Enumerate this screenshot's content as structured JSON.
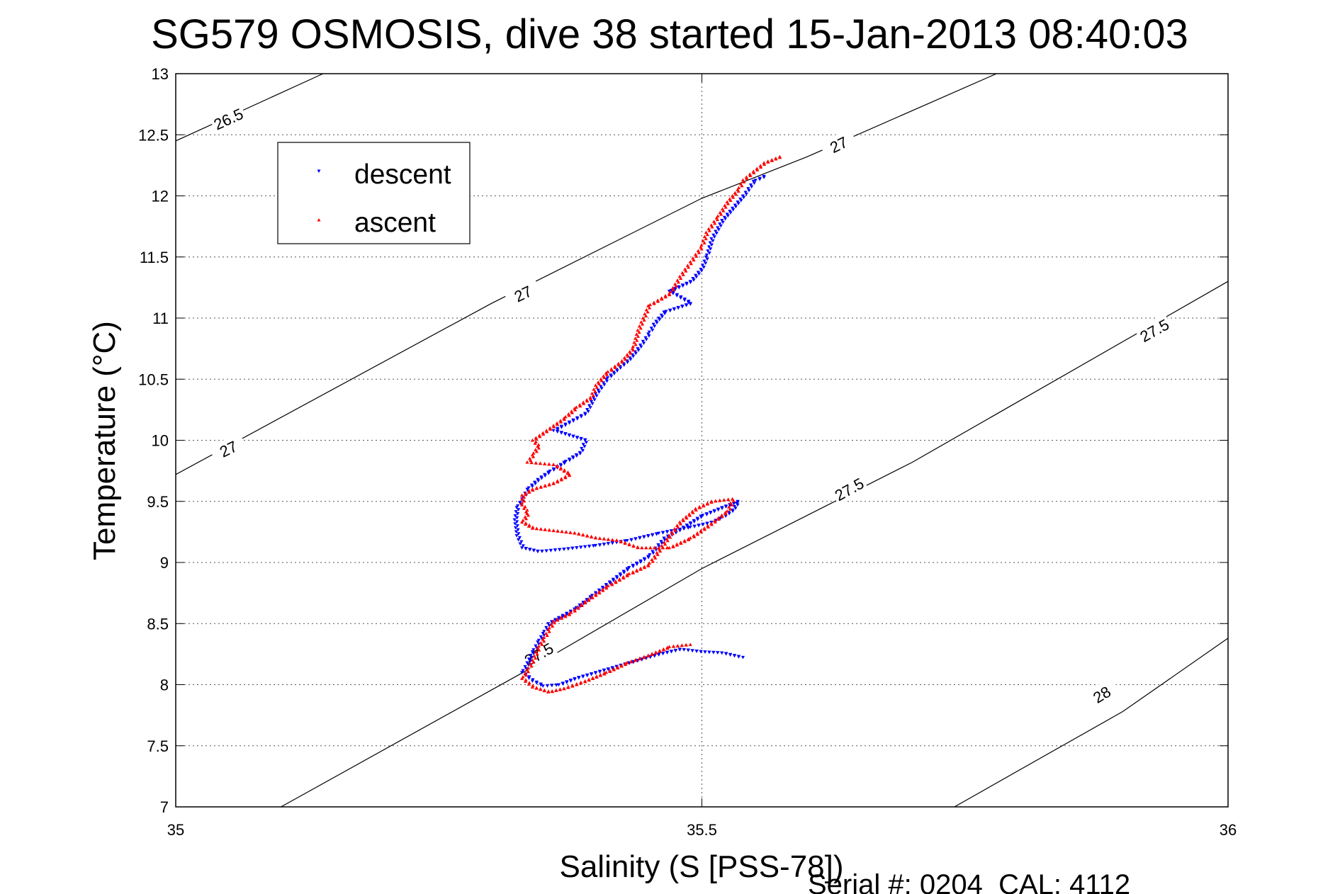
{
  "chart_data": {
    "type": "scatter",
    "title": "SG579 OSMOSIS, dive 38 started 15-Jan-2013 08:40:03",
    "xlabel": "Salinity (S [PSS-78])",
    "ylabel": "Temperature (°C)",
    "xlim": [
      35,
      36
    ],
    "ylim": [
      7,
      13
    ],
    "x_ticks": [
      "35",
      "35.5",
      "36"
    ],
    "y_ticks": [
      "7",
      "7.5",
      "8",
      "8.5",
      "9",
      "9.5",
      "10",
      "10.5",
      "11",
      "11.5",
      "12",
      "12.5",
      "13"
    ],
    "grid": true,
    "legend_position": "top-left",
    "footer": "Serial #: 0204  CAL: 4112",
    "colors": {
      "descent": "#0000ff",
      "ascent": "#ff0000",
      "contour": "#000000"
    },
    "series": [
      {
        "name": "descent",
        "marker": "triangle-down",
        "color": "#0000ff",
        "points": [
          [
            35.56,
            12.16
          ],
          [
            35.55,
            12.12
          ],
          [
            35.54,
            12.0
          ],
          [
            35.53,
            11.9
          ],
          [
            35.52,
            11.8
          ],
          [
            35.51,
            11.65
          ],
          [
            35.505,
            11.5
          ],
          [
            35.5,
            11.4
          ],
          [
            35.49,
            11.3
          ],
          [
            35.47,
            11.22
          ],
          [
            35.49,
            11.12
          ],
          [
            35.465,
            11.05
          ],
          [
            35.455,
            10.95
          ],
          [
            35.45,
            10.87
          ],
          [
            35.44,
            10.75
          ],
          [
            35.43,
            10.65
          ],
          [
            35.42,
            10.58
          ],
          [
            35.41,
            10.5
          ],
          [
            35.4,
            10.38
          ],
          [
            35.39,
            10.22
          ],
          [
            35.375,
            10.15
          ],
          [
            35.36,
            10.08
          ],
          [
            35.39,
            10.0
          ],
          [
            35.385,
            9.9
          ],
          [
            35.37,
            9.82
          ],
          [
            35.355,
            9.74
          ],
          [
            35.345,
            9.68
          ],
          [
            35.335,
            9.6
          ],
          [
            35.33,
            9.52
          ],
          [
            35.325,
            9.45
          ],
          [
            35.323,
            9.35
          ],
          [
            35.325,
            9.22
          ],
          [
            35.33,
            9.12
          ],
          [
            35.345,
            9.09
          ],
          [
            35.37,
            9.11
          ],
          [
            35.4,
            9.14
          ],
          [
            35.43,
            9.18
          ],
          [
            35.46,
            9.24
          ],
          [
            35.49,
            9.29
          ],
          [
            35.51,
            9.33
          ],
          [
            35.52,
            9.37
          ],
          [
            35.53,
            9.43
          ],
          [
            35.535,
            9.5
          ],
          [
            35.52,
            9.45
          ],
          [
            35.5,
            9.38
          ],
          [
            35.48,
            9.27
          ],
          [
            35.465,
            9.2
          ],
          [
            35.45,
            9.05
          ],
          [
            35.43,
            8.95
          ],
          [
            35.41,
            8.82
          ],
          [
            35.395,
            8.72
          ],
          [
            35.38,
            8.62
          ],
          [
            35.365,
            8.55
          ],
          [
            35.355,
            8.5
          ],
          [
            35.35,
            8.42
          ],
          [
            35.345,
            8.35
          ],
          [
            35.34,
            8.27
          ],
          [
            35.335,
            8.18
          ],
          [
            35.33,
            8.1
          ],
          [
            35.34,
            8.03
          ],
          [
            35.35,
            7.99
          ],
          [
            35.365,
            8.0
          ],
          [
            35.38,
            8.05
          ],
          [
            35.4,
            8.1
          ],
          [
            35.42,
            8.15
          ],
          [
            35.44,
            8.2
          ],
          [
            35.46,
            8.25
          ],
          [
            35.48,
            8.29
          ],
          [
            35.5,
            8.27
          ],
          [
            35.52,
            8.26
          ],
          [
            35.54,
            8.22
          ]
        ]
      },
      {
        "name": "ascent",
        "marker": "triangle-up",
        "color": "#ff0000",
        "points": [
          [
            35.575,
            12.32
          ],
          [
            35.56,
            12.27
          ],
          [
            35.55,
            12.2
          ],
          [
            35.54,
            12.13
          ],
          [
            35.535,
            12.05
          ],
          [
            35.525,
            11.95
          ],
          [
            35.515,
            11.82
          ],
          [
            35.505,
            11.7
          ],
          [
            35.5,
            11.58
          ],
          [
            35.49,
            11.46
          ],
          [
            35.48,
            11.34
          ],
          [
            35.47,
            11.2
          ],
          [
            35.45,
            11.1
          ],
          [
            35.445,
            11.0
          ],
          [
            35.44,
            10.9
          ],
          [
            35.435,
            10.75
          ],
          [
            35.425,
            10.65
          ],
          [
            35.41,
            10.55
          ],
          [
            35.4,
            10.45
          ],
          [
            35.395,
            10.35
          ],
          [
            35.38,
            10.26
          ],
          [
            35.37,
            10.18
          ],
          [
            35.36,
            10.12
          ],
          [
            35.35,
            10.06
          ],
          [
            35.34,
            10.0
          ],
          [
            35.345,
            9.95
          ],
          [
            35.34,
            9.88
          ],
          [
            35.335,
            9.82
          ],
          [
            35.36,
            9.8
          ],
          [
            35.375,
            9.72
          ],
          [
            35.36,
            9.65
          ],
          [
            35.34,
            9.6
          ],
          [
            35.33,
            9.55
          ],
          [
            35.33,
            9.47
          ],
          [
            35.335,
            9.4
          ],
          [
            35.33,
            9.33
          ],
          [
            35.34,
            9.28
          ],
          [
            35.36,
            9.26
          ],
          [
            35.38,
            9.24
          ],
          [
            35.4,
            9.2
          ],
          [
            35.42,
            9.18
          ],
          [
            35.44,
            9.12
          ],
          [
            35.47,
            9.12
          ],
          [
            35.49,
            9.2
          ],
          [
            35.51,
            9.32
          ],
          [
            35.525,
            9.42
          ],
          [
            35.53,
            9.52
          ],
          [
            35.51,
            9.5
          ],
          [
            35.495,
            9.44
          ],
          [
            35.48,
            9.33
          ],
          [
            35.47,
            9.22
          ],
          [
            35.45,
            8.98
          ],
          [
            35.43,
            8.9
          ],
          [
            35.41,
            8.8
          ],
          [
            35.39,
            8.68
          ],
          [
            35.375,
            8.58
          ],
          [
            35.36,
            8.52
          ],
          [
            35.355,
            8.45
          ],
          [
            35.35,
            8.37
          ],
          [
            35.345,
            8.3
          ],
          [
            35.34,
            8.2
          ],
          [
            35.335,
            8.12
          ],
          [
            35.33,
            8.05
          ],
          [
            35.34,
            7.98
          ],
          [
            35.355,
            7.94
          ],
          [
            35.37,
            7.97
          ],
          [
            35.39,
            8.03
          ],
          [
            35.41,
            8.1
          ],
          [
            35.43,
            8.18
          ],
          [
            35.45,
            8.24
          ],
          [
            35.47,
            8.31
          ],
          [
            35.49,
            8.33
          ]
        ]
      }
    ],
    "contours": [
      {
        "label": "26.5",
        "points": [
          [
            35.0,
            12.45
          ],
          [
            35.14,
            13.0
          ]
        ],
        "label_at": [
          [
            35.05,
            12.63
          ]
        ]
      },
      {
        "label": "27",
        "points": [
          [
            35.0,
            9.72
          ],
          [
            35.3,
            11.12
          ],
          [
            35.5,
            11.98
          ],
          [
            35.6,
            12.32
          ],
          [
            35.78,
            13.0
          ]
        ],
        "label_at": [
          [
            35.05,
            9.93
          ],
          [
            35.33,
            11.2
          ],
          [
            35.63,
            12.42
          ]
        ]
      },
      {
        "label": "27.5",
        "points": [
          [
            35.1,
            7.0
          ],
          [
            35.33,
            8.1
          ],
          [
            35.5,
            8.95
          ],
          [
            35.7,
            9.82
          ],
          [
            36.0,
            11.3
          ]
        ],
        "label_at": [
          [
            35.345,
            8.25
          ],
          [
            35.64,
            9.6
          ],
          [
            35.93,
            10.9
          ]
        ]
      },
      {
        "label": "28",
        "points": [
          [
            35.74,
            7.0
          ],
          [
            35.9,
            7.78
          ],
          [
            36.0,
            8.38
          ]
        ],
        "label_at": [
          [
            35.88,
            7.92
          ]
        ]
      }
    ]
  }
}
